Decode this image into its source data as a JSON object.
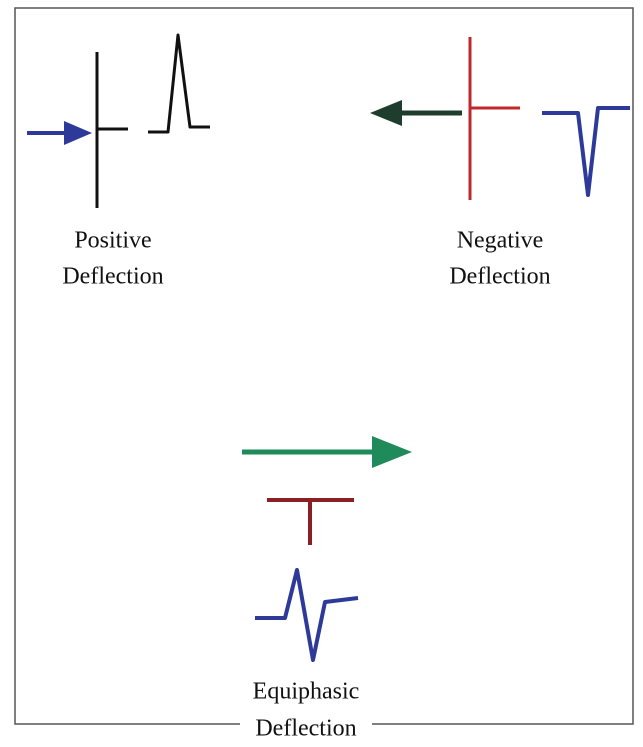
{
  "panels": [
    {
      "label": [
        "Positive",
        "Deflection"
      ]
    },
    {
      "label": [
        "Negative",
        "Deflection"
      ]
    },
    {
      "label": [
        "Equiphasic",
        "Deflection"
      ]
    }
  ]
}
